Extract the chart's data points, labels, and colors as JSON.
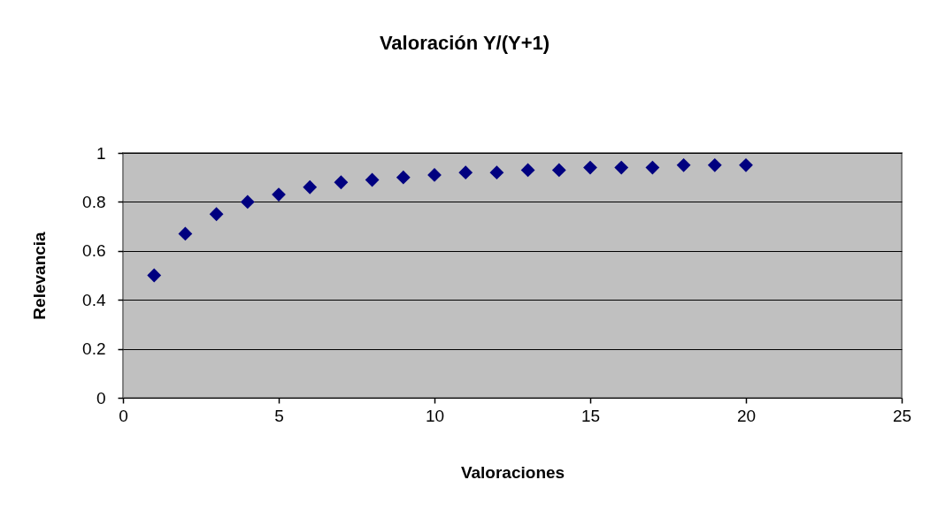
{
  "chart_data": {
    "type": "scatter",
    "title": "Valoración Y/(Y+1)",
    "xlabel": "Valoraciones",
    "ylabel": "Relevancia",
    "x": [
      1,
      2,
      3,
      4,
      5,
      6,
      7,
      8,
      9,
      10,
      11,
      12,
      13,
      14,
      15,
      16,
      17,
      18,
      19,
      20
    ],
    "values": [
      0.5,
      0.67,
      0.75,
      0.8,
      0.83,
      0.86,
      0.88,
      0.89,
      0.9,
      0.91,
      0.92,
      0.92,
      0.93,
      0.93,
      0.94,
      0.94,
      0.94,
      0.95,
      0.95,
      0.95
    ],
    "color": "#000080",
    "marker": "diamond",
    "xlim": [
      0,
      25
    ],
    "xticks": [
      0,
      5,
      10,
      15,
      20,
      25
    ],
    "ylim": [
      0,
      1
    ],
    "yticks": [
      0,
      0.2,
      0.4,
      0.6,
      0.8,
      1
    ],
    "grid": "y"
  }
}
